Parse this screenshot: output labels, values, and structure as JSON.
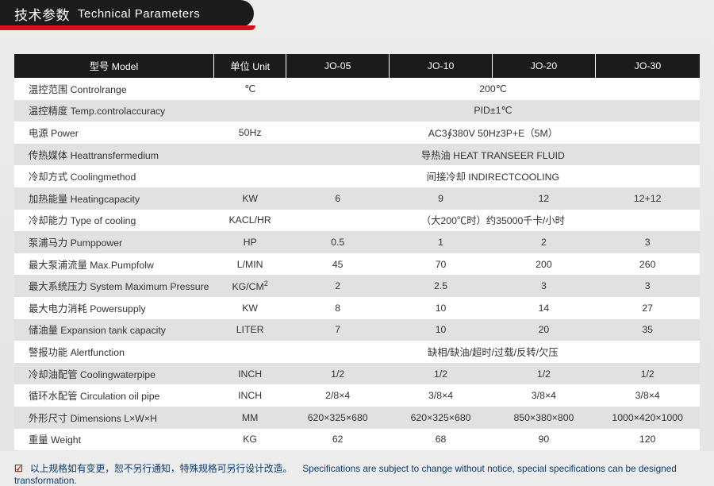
{
  "header": {
    "title_cn": "技术参数",
    "title_en": "Technical Parameters"
  },
  "columns": [
    {
      "key": "model",
      "label": "型号 Model",
      "width": "26%"
    },
    {
      "key": "unit",
      "label": "单位 Unit",
      "width": "11%"
    },
    {
      "key": "j05",
      "label": "JO-05",
      "width": "15.75%"
    },
    {
      "key": "j10",
      "label": "JO-10",
      "width": "15.75%"
    },
    {
      "key": "j20",
      "label": "JO-20",
      "width": "15.75%"
    },
    {
      "key": "j30",
      "label": "JO-30",
      "width": "15.75%"
    }
  ],
  "rows": [
    {
      "label": "温控范围 Controlrange",
      "unit": "℃",
      "span": "200℃"
    },
    {
      "label": "温控精度 Temp.controlaccuracy",
      "unit": "",
      "span": "PID±1℃"
    },
    {
      "label": "电源 Power",
      "unit": "50Hz",
      "span": "AC3∮380V 50Hz3P+E（5M）"
    },
    {
      "label": "传热媒体 Heattransfermedium",
      "unit": "",
      "span": "导热油 HEAT TRANSEER FLUID"
    },
    {
      "label": "冷却方式 Coolingmethod",
      "unit": "",
      "span": "间接冷却 INDIRECTCOOLING"
    },
    {
      "label": "加热能量 Heatingcapacity",
      "unit": "KW",
      "cells": [
        "6",
        "9",
        "12",
        "12+12"
      ]
    },
    {
      "label": "冷却能力 Type of cooling",
      "unit": "KACL/HR",
      "span": "（大200℃时）约35000千卡/小时"
    },
    {
      "label": "泵浦马力 Pumppower",
      "unit": "HP",
      "cells": [
        "0.5",
        "1",
        "2",
        "3"
      ]
    },
    {
      "label": "最大泵浦流量 Max.Pumpfolw",
      "unit": "L/MIN",
      "cells": [
        "45",
        "70",
        "200",
        "260"
      ]
    },
    {
      "label": "最大系统压力 System Maximum Pressure",
      "unit_html": "KG/CM<sup>2</sup>",
      "cells": [
        "2",
        "2.5",
        "3",
        "3"
      ]
    },
    {
      "label": "最大电力消耗 Powersupply",
      "unit": "KW",
      "cells": [
        "8",
        "10",
        "14",
        "27"
      ]
    },
    {
      "label": "储油量 Expansion tank capacity",
      "unit": "LITER",
      "cells": [
        "7",
        "10",
        "20",
        "35"
      ]
    },
    {
      "label": "警报功能 Alertfunction",
      "unit": "",
      "span": "缺相/缺油/超时/过载/反转/欠压"
    },
    {
      "label": "冷却油配管 Coolingwaterpipe",
      "unit": "INCH",
      "cells": [
        "1/2",
        "1/2",
        "1/2",
        "1/2"
      ]
    },
    {
      "label": "循环水配管 Circulation oil pipe",
      "unit": "INCH",
      "cells": [
        "2/8×4",
        "3/8×4",
        "3/8×4",
        "3/8×4"
      ]
    },
    {
      "label": "外形尺寸 Dimensions L×W×H",
      "unit": "MM",
      "cells": [
        "620×325×680",
        "620×325×680",
        "850×380×800",
        "1000×420×1000"
      ]
    },
    {
      "label": "重量 Weight",
      "unit": "KG",
      "cells": [
        "62",
        "68",
        "90",
        "120"
      ]
    }
  ],
  "footer": {
    "text_cn": "以上规格如有变更，恕不另行通知，特殊规格可另行设计改造。",
    "text_en": "Specifications are subject to change without notice, special specifications can be designed transformation."
  },
  "colors": {
    "header_bg": "#1b1b1b",
    "accent": "#d8101d",
    "row_odd": "#ffffff",
    "row_even": "#e1e1e1",
    "page_bg": "#e8e8e8",
    "footer_text": "#0b3a6e"
  }
}
